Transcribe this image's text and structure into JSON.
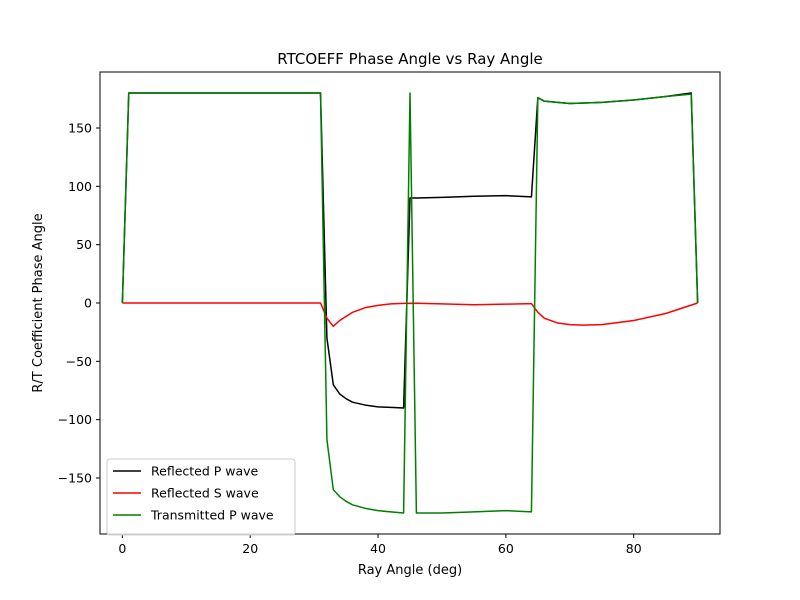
{
  "chart_data": {
    "type": "line",
    "title": "RTCOEFF Phase Angle vs Ray Angle",
    "xlabel": "Ray Angle (deg)",
    "ylabel": "R/T Coefficient Phase Angle",
    "xlim": [
      -3.5,
      93.5
    ],
    "ylim": [
      -198,
      198
    ],
    "xticks": [
      0,
      20,
      40,
      60,
      80
    ],
    "yticks": [
      -150,
      -100,
      -50,
      0,
      50,
      100,
      150
    ],
    "xtick_labels": [
      "0",
      "20",
      "40",
      "60",
      "80"
    ],
    "ytick_labels": [
      "−150",
      "−100",
      "−50",
      "0",
      "50",
      "100",
      "150"
    ],
    "grid": false,
    "legend_position": "lower-left",
    "series": [
      {
        "name": "Reflected P wave",
        "color": "#000000",
        "x": [
          0,
          1,
          31,
          32,
          33,
          34,
          35,
          36,
          38,
          40,
          42,
          44,
          45,
          46,
          50,
          55,
          60,
          64,
          65,
          66,
          70,
          75,
          80,
          85,
          89,
          90
        ],
        "y": [
          0,
          180,
          180,
          -30,
          -70,
          -78,
          -82,
          -85,
          -87.5,
          -89,
          -89.5,
          -90,
          90,
          90,
          90.5,
          91.5,
          92,
          91,
          176,
          173,
          171,
          172,
          174,
          177,
          180,
          0
        ]
      },
      {
        "name": "Reflected S wave",
        "color": "#ff0000",
        "x": [
          0,
          31,
          32,
          33,
          34,
          36,
          38,
          40,
          42,
          44,
          46,
          50,
          55,
          60,
          64,
          65,
          66,
          68,
          70,
          72,
          75,
          80,
          85,
          90
        ],
        "y": [
          0,
          0,
          -13,
          -20,
          -15,
          -8,
          -4,
          -2,
          -0.8,
          -0.3,
          -0.2,
          -0.8,
          -1.5,
          -1,
          -0.5,
          -8,
          -13,
          -17,
          -18.5,
          -19,
          -18.5,
          -15,
          -9,
          0
        ]
      },
      {
        "name": "Transmitted P wave",
        "color": "#008000",
        "x": [
          0,
          1,
          31,
          32,
          33,
          34,
          35,
          36,
          38,
          40,
          42,
          44,
          45,
          46,
          50,
          55,
          60,
          64,
          65,
          66,
          70,
          75,
          80,
          85,
          89,
          90
        ],
        "y": [
          0,
          180,
          180,
          -117,
          -160,
          -166,
          -170,
          -173,
          -176,
          -178,
          -179,
          -180,
          180,
          -180,
          -180,
          -179,
          -178,
          -179,
          176,
          173,
          171,
          172,
          174,
          177,
          179,
          0
        ]
      }
    ]
  }
}
